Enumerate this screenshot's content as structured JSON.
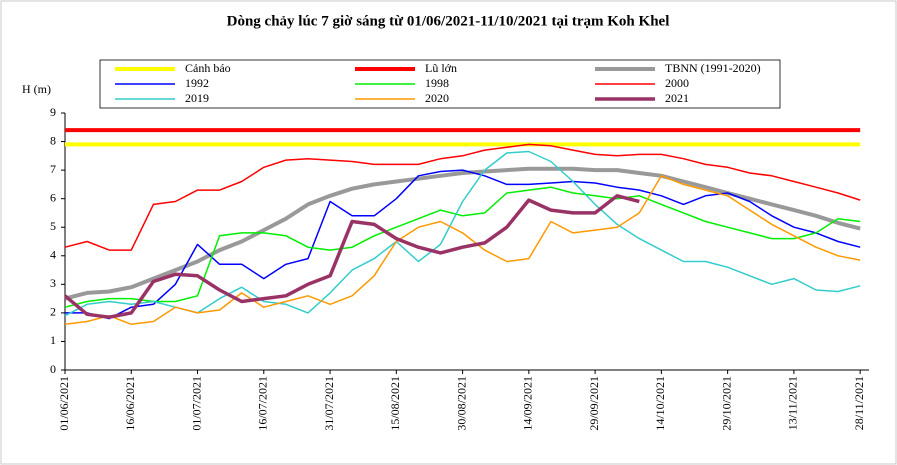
{
  "chart_data": {
    "type": "line",
    "title": "Dòng chảy lúc 7 giờ sáng từ 01/06/2021-11/10/2021 tại trạm Koh Khel",
    "y_label": "H (m)",
    "x": [
      0,
      5,
      10,
      15,
      20,
      25,
      30,
      35,
      40,
      45,
      50,
      55,
      60,
      65,
      70,
      75,
      80,
      85,
      90,
      95,
      100,
      105,
      110,
      115,
      120,
      125,
      130,
      135,
      140,
      145,
      150,
      155,
      160,
      165,
      170,
      175,
      180
    ],
    "xlim": [
      0,
      182
    ],
    "xticks": [
      {
        "value": 0,
        "label": "01/06/2021"
      },
      {
        "value": 15,
        "label": "16/06/2021"
      },
      {
        "value": 30,
        "label": "01/07/2021"
      },
      {
        "value": 45,
        "label": "16/07/2021"
      },
      {
        "value": 60,
        "label": "31/07/2021"
      },
      {
        "value": 75,
        "label": "15/08/2021"
      },
      {
        "value": 90,
        "label": "30/08/2021"
      },
      {
        "value": 105,
        "label": "14/09/2021"
      },
      {
        "value": 120,
        "label": "29/09/2021"
      },
      {
        "value": 135,
        "label": "14/10/2021"
      },
      {
        "value": 150,
        "label": "29/10/2021"
      },
      {
        "value": 165,
        "label": "13/11/2021"
      },
      {
        "value": 180,
        "label": "28/11/2021"
      }
    ],
    "ylim": [
      0,
      9
    ],
    "yticks": [
      0,
      1,
      2,
      3,
      4,
      5,
      6,
      7,
      8,
      9
    ],
    "series": [
      {
        "name": "Cảnh báo",
        "color": "#ffff00",
        "line_width": 4,
        "values": [
          7.9,
          7.9,
          7.9,
          7.9,
          7.9,
          7.9,
          7.9,
          7.9,
          7.9,
          7.9,
          7.9,
          7.9,
          7.9,
          7.9,
          7.9,
          7.9,
          7.9,
          7.9,
          7.9,
          7.9,
          7.9,
          7.9,
          7.9,
          7.9,
          7.9,
          7.9,
          7.9,
          7.9,
          7.9,
          7.9,
          7.9,
          7.9,
          7.9,
          7.9,
          7.9,
          7.9,
          7.9
        ]
      },
      {
        "name": "Lũ lớn",
        "color": "#ff0000",
        "line_width": 4,
        "values": [
          8.4,
          8.4,
          8.4,
          8.4,
          8.4,
          8.4,
          8.4,
          8.4,
          8.4,
          8.4,
          8.4,
          8.4,
          8.4,
          8.4,
          8.4,
          8.4,
          8.4,
          8.4,
          8.4,
          8.4,
          8.4,
          8.4,
          8.4,
          8.4,
          8.4,
          8.4,
          8.4,
          8.4,
          8.4,
          8.4,
          8.4,
          8.4,
          8.4,
          8.4,
          8.4,
          8.4,
          8.4
        ]
      },
      {
        "name": "TBNN (1991-2020)",
        "color": "#999999",
        "line_width": 4,
        "values": [
          2.5,
          2.7,
          2.75,
          2.9,
          3.2,
          3.5,
          3.8,
          4.2,
          4.5,
          4.9,
          5.3,
          5.8,
          6.1,
          6.35,
          6.5,
          6.6,
          6.7,
          6.8,
          6.9,
          6.95,
          7.0,
          7.05,
          7.05,
          7.05,
          7.0,
          7.0,
          6.9,
          6.8,
          6.6,
          6.4,
          6.2,
          6.0,
          5.8,
          5.6,
          5.4,
          5.15,
          4.95
        ]
      },
      {
        "name": "1992",
        "color": "#0000ff",
        "line_width": 1.5,
        "values": [
          2.0,
          2.0,
          1.8,
          2.2,
          2.3,
          3.0,
          4.4,
          3.7,
          3.7,
          3.2,
          3.7,
          3.9,
          5.9,
          5.4,
          5.4,
          6.0,
          6.8,
          6.95,
          7.0,
          6.8,
          6.5,
          6.5,
          6.55,
          6.6,
          6.55,
          6.4,
          6.3,
          6.1,
          5.8,
          6.1,
          6.2,
          5.9,
          5.4,
          5.0,
          4.8,
          4.5,
          4.3
        ]
      },
      {
        "name": "1998",
        "color": "#00ee00",
        "line_width": 1.5,
        "values": [
          2.2,
          2.4,
          2.5,
          2.5,
          2.4,
          2.4,
          2.6,
          4.7,
          4.8,
          4.8,
          4.7,
          4.3,
          4.2,
          4.3,
          4.7,
          5.0,
          5.3,
          5.6,
          5.4,
          5.5,
          6.2,
          6.3,
          6.4,
          6.2,
          6.1,
          6.0,
          6.1,
          5.8,
          5.5,
          5.2,
          5.0,
          4.8,
          4.6,
          4.6,
          4.8,
          5.3,
          5.2
        ]
      },
      {
        "name": "2000",
        "color": "#ff0000",
        "line_width": 1.5,
        "values": [
          4.3,
          4.5,
          4.2,
          4.2,
          5.8,
          5.9,
          6.3,
          6.3,
          6.6,
          7.1,
          7.35,
          7.4,
          7.35,
          7.3,
          7.2,
          7.2,
          7.2,
          7.4,
          7.5,
          7.7,
          7.8,
          7.9,
          7.85,
          7.7,
          7.55,
          7.5,
          7.55,
          7.55,
          7.4,
          7.2,
          7.1,
          6.9,
          6.8,
          6.6,
          6.4,
          6.2,
          5.95
        ]
      },
      {
        "name": "2019",
        "color": "#33cccc",
        "line_width": 1.5,
        "values": [
          1.9,
          2.3,
          2.4,
          2.3,
          2.4,
          2.2,
          2.0,
          2.5,
          2.9,
          2.4,
          2.3,
          2.0,
          2.7,
          3.5,
          3.9,
          4.5,
          3.8,
          4.4,
          5.9,
          7.0,
          7.6,
          7.65,
          7.3,
          6.6,
          5.8,
          5.1,
          4.6,
          4.2,
          3.8,
          3.8,
          3.6,
          3.3,
          3.0,
          3.2,
          2.8,
          2.75,
          2.95
        ]
      },
      {
        "name": "2020",
        "color": "#ff9900",
        "line_width": 1.5,
        "values": [
          1.6,
          1.7,
          1.9,
          1.6,
          1.7,
          2.2,
          2.0,
          2.1,
          2.7,
          2.2,
          2.4,
          2.6,
          2.3,
          2.6,
          3.3,
          4.5,
          5.0,
          5.2,
          4.8,
          4.2,
          3.8,
          3.9,
          5.2,
          4.8,
          4.9,
          5.0,
          5.5,
          6.8,
          6.5,
          6.3,
          6.1,
          5.6,
          5.1,
          4.7,
          4.3,
          4.0,
          3.85
        ]
      },
      {
        "name": "2021",
        "color": "#993366",
        "line_width": 3.5,
        "values": [
          2.6,
          1.95,
          1.85,
          2.0,
          3.1,
          3.35,
          3.3,
          2.8,
          2.4,
          2.5,
          2.6,
          3.0,
          3.3,
          5.2,
          5.1,
          4.6,
          4.3,
          4.1,
          4.3,
          4.45,
          5.0,
          5.95,
          5.6,
          5.5,
          5.5,
          6.1,
          5.9,
          null,
          null,
          null,
          null,
          null,
          null,
          null,
          null,
          null,
          null
        ]
      }
    ]
  }
}
